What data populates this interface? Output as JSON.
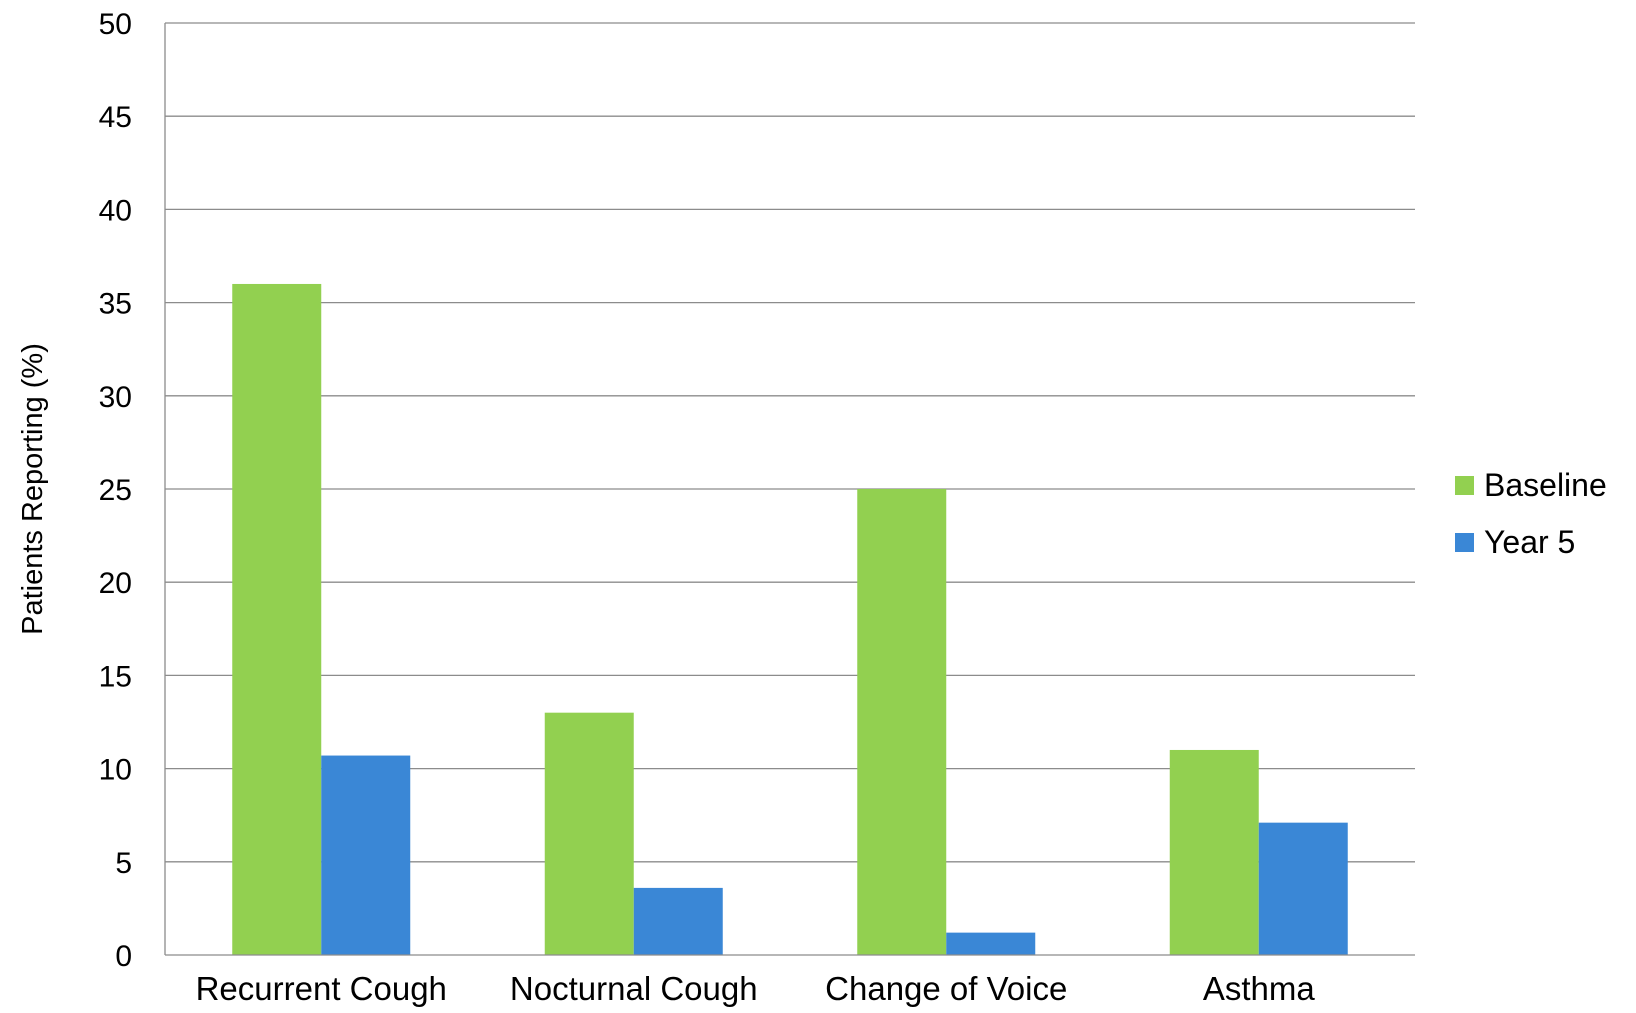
{
  "chart_data": {
    "type": "bar",
    "title": "",
    "xlabel": "",
    "ylabel": "Patients Reporting  (%)",
    "ylim": [
      0,
      50
    ],
    "yticks": [
      "0",
      "5",
      "10",
      "15",
      "20",
      "25",
      "30",
      "35",
      "40",
      "45",
      "50"
    ],
    "categories": [
      "Recurrent Cough",
      "Nocturnal Cough",
      "Change of Voice",
      "Asthma"
    ],
    "series": [
      {
        "name": "Baseline",
        "color": "#92d050",
        "values": [
          36,
          13,
          25,
          11
        ]
      },
      {
        "name": "Year 5",
        "color": "#3a87d6",
        "values": [
          10.7,
          3.6,
          1.2,
          7.1
        ]
      }
    ],
    "grid": true,
    "legend": "right"
  }
}
